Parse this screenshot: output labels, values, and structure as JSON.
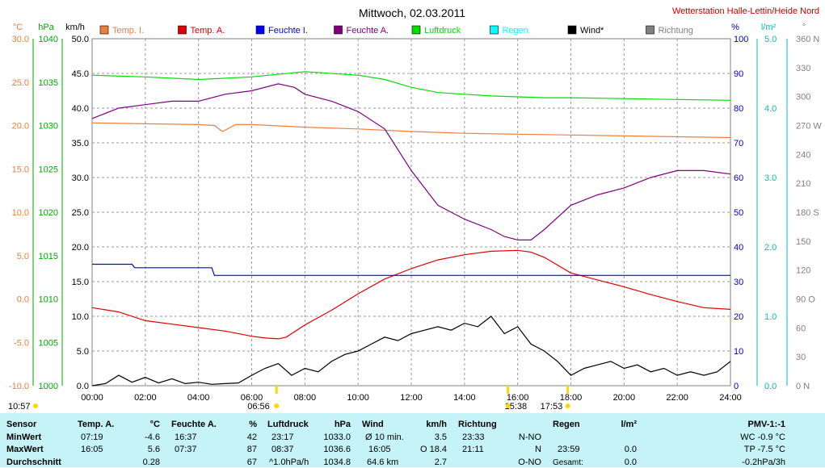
{
  "header": {
    "title": "Mittwoch, 02.03.2011",
    "station": "Wetterstation Halle-Lettin/Heide Nord"
  },
  "axis_units": {
    "temp": "°C",
    "pressure": "hPa",
    "wind": "km/h",
    "humidity": "%",
    "rain": "l/m²",
    "direction": "°"
  },
  "legend": [
    {
      "label": "Temp. I.",
      "color": "#f07d3c"
    },
    {
      "label": "Temp. A.",
      "color": "#e00000"
    },
    {
      "label": "Feuchte I.",
      "color": "#0000ff"
    },
    {
      "label": "Feuchte A.",
      "color": "#800080"
    },
    {
      "label": "Luftdruck",
      "color": "#00dd00"
    },
    {
      "label": "Regen",
      "color": "#00ffff"
    },
    {
      "label": "Wind*",
      "color": "#000000"
    },
    {
      "label": "Richtung",
      "color": "#808080"
    }
  ],
  "chart_data": {
    "type": "line",
    "title": "Mittwoch, 02.03.2011",
    "x_unit": "time of day",
    "xlim": [
      "00:00",
      "24:00"
    ],
    "x_ticks": [
      "00:00",
      "02:00",
      "04:00",
      "06:00",
      "08:00",
      "10:00",
      "12:00",
      "14:00",
      "16:00",
      "18:00",
      "20:00",
      "22:00",
      "24:00"
    ],
    "axes": {
      "temp_c": {
        "ticks": [
          "-10.0",
          "-5.0",
          "0.0",
          "5.0",
          "10.0",
          "15.0",
          "20.0",
          "25.0",
          "30.0"
        ],
        "ylim": [
          -10,
          30
        ],
        "color": "#f07d3c"
      },
      "pressure_hpa": {
        "ticks": [
          "1000",
          "1005",
          "1010",
          "1015",
          "1020",
          "1025",
          "1030",
          "1035",
          "1040"
        ],
        "ylim": [
          1000,
          1040
        ],
        "color": "#00aa00"
      },
      "wind_kmh": {
        "ticks": [
          "0.0",
          "5.0",
          "10.0",
          "15.0",
          "20.0",
          "25.0",
          "30.0",
          "35.0",
          "40.0",
          "45.0",
          "50.0"
        ],
        "ylim": [
          0,
          50
        ],
        "color": "#000000"
      },
      "humidity_pct": {
        "ticks": [
          "0",
          "10",
          "20",
          "30",
          "40",
          "50",
          "60",
          "70",
          "80",
          "90",
          "100"
        ],
        "ylim": [
          0,
          100
        ],
        "color": "#0000c0"
      },
      "rain_lm2": {
        "ticks": [
          "0.0",
          "1.0",
          "2.0",
          "3.0",
          "4.0",
          "5.0"
        ],
        "ylim": [
          0,
          5
        ],
        "color": "#00c0c0"
      },
      "direction_deg": {
        "ticks": [
          "0 N",
          "30",
          "60",
          "90 O",
          "120",
          "150",
          "180 S",
          "210",
          "240",
          "270 W",
          "300",
          "330",
          "360 N"
        ],
        "ylim": [
          0,
          360
        ],
        "color": "#808080"
      }
    },
    "series": [
      {
        "name": "Temp. I.",
        "axis": "temp_c",
        "color": "#f07d3c",
        "x": [
          0,
          2,
          4,
          4.6,
          4.9,
          5.4,
          6,
          8,
          10,
          12,
          14,
          16,
          18,
          20,
          22,
          24
        ],
        "y": [
          20.3,
          20.2,
          20.1,
          20.0,
          19.3,
          20.1,
          20.1,
          19.8,
          19.6,
          19.3,
          19.1,
          19.0,
          18.9,
          18.8,
          18.7,
          18.6
        ]
      },
      {
        "name": "Temp. A.",
        "axis": "temp_c",
        "color": "#e00000",
        "x": [
          0,
          1,
          2,
          3,
          4,
          5,
          6,
          6.5,
          7,
          7.3,
          8,
          9,
          10,
          11,
          12,
          13,
          14,
          15,
          16,
          16.5,
          17,
          18,
          19,
          20,
          21,
          22,
          23,
          24
        ],
        "y": [
          -1.0,
          -1.5,
          -2.5,
          -2.9,
          -3.3,
          -3.7,
          -4.3,
          -4.5,
          -4.6,
          -4.4,
          -3.0,
          -1.3,
          0.6,
          2.3,
          3.5,
          4.5,
          5.1,
          5.5,
          5.6,
          5.4,
          4.8,
          3.0,
          2.2,
          1.4,
          0.5,
          -0.3,
          -1.0,
          -1.2
        ]
      },
      {
        "name": "Feuchte I.",
        "axis": "humidity_pct",
        "color": "#0000ff",
        "x": [
          0,
          1.5,
          1.6,
          4.5,
          4.6,
          24
        ],
        "y": [
          35,
          35,
          34,
          34,
          31.8,
          31.8
        ]
      },
      {
        "name": "Feuchte A.",
        "axis": "humidity_pct",
        "color": "#800080",
        "x": [
          0,
          1,
          2,
          3,
          4,
          5,
          6,
          7,
          7.6,
          8,
          9,
          10,
          11,
          12,
          13,
          14,
          15,
          15.5,
          16,
          16.5,
          17,
          18,
          19,
          20,
          21,
          22,
          23,
          24
        ],
        "y": [
          77,
          80,
          81,
          82,
          82,
          84,
          85,
          87,
          86,
          84,
          82,
          79,
          74,
          62,
          52,
          48,
          45,
          43,
          42,
          42,
          45,
          52,
          55,
          57,
          60,
          62,
          62,
          61
        ]
      },
      {
        "name": "Luftdruck",
        "axis": "pressure_hpa",
        "color": "#00dd00",
        "x": [
          0,
          2,
          4,
          6,
          8,
          10,
          11,
          12,
          13,
          14,
          15,
          16,
          17,
          18,
          20,
          22,
          24
        ],
        "y": [
          1035.8,
          1035.6,
          1035.3,
          1035.6,
          1036.2,
          1035.8,
          1035.3,
          1034.4,
          1033.8,
          1033.6,
          1033.4,
          1033.3,
          1033.2,
          1033.2,
          1033.1,
          1033.0,
          1032.9
        ]
      },
      {
        "name": "Wind*",
        "axis": "wind_kmh",
        "color": "#000000",
        "x": [
          0,
          0.5,
          1,
          1.5,
          2,
          2.5,
          3,
          3.5,
          4,
          4.5,
          5,
          5.5,
          6,
          6.5,
          7,
          7.5,
          8,
          8.5,
          9,
          9.5,
          10,
          10.5,
          11,
          11.5,
          12,
          12.5,
          13,
          13.5,
          14,
          14.5,
          15,
          15.5,
          16,
          16.5,
          17,
          17.5,
          18,
          18.5,
          19,
          19.5,
          20,
          20.5,
          21,
          21.5,
          22,
          22.5,
          23,
          23.5,
          24
        ],
        "y": [
          0,
          0.3,
          1.5,
          0.5,
          1.2,
          0.4,
          1.0,
          0.3,
          0.5,
          0.2,
          0.3,
          0.4,
          1.5,
          2.5,
          3.2,
          1.5,
          2.5,
          2.0,
          3.5,
          4.5,
          5.0,
          6.0,
          7.0,
          6.5,
          7.5,
          8.0,
          8.5,
          8.0,
          9.0,
          8.5,
          10.0,
          7.5,
          8.5,
          6.0,
          5.0,
          3.5,
          1.5,
          2.5,
          3.0,
          3.5,
          2.5,
          3.0,
          2.0,
          2.5,
          1.5,
          2.0,
          1.5,
          2.0,
          3.5
        ]
      }
    ]
  },
  "markers": {
    "left_time": "10:57",
    "sunrise": "06:56",
    "sun_mid": "15:38",
    "sunset": "17:53"
  },
  "table": {
    "headers": {
      "sensor": "Sensor",
      "temp": "Temp. A.",
      "temp_unit": "°C",
      "hum": "Feuchte A.",
      "hum_unit": "%",
      "press": "Luftdruck",
      "press_unit": "hPa",
      "wind": "Wind",
      "wind_unit": "km/h",
      "dir": "Richtung",
      "rain": "Regen",
      "rain_unit": "l/m²",
      "pmv": "PMV-1:-1"
    },
    "rows": [
      {
        "label": "MinWert",
        "temp_t": "07:19",
        "temp_v": "-4.6",
        "hum_t": "16:37",
        "hum_v": "42",
        "press_t": "23:17",
        "press_v": "1033.0",
        "wind_t": "Ø 10 min.",
        "wind_v": "3.5",
        "dir_t": "23:33",
        "dir_v": "N-NO",
        "rain_t": "",
        "rain_v": "",
        "pmv": "WC -0.9 °C"
      },
      {
        "label": "MaxWert",
        "temp_t": "16:05",
        "temp_v": "5.6",
        "hum_t": "07:37",
        "hum_v": "87",
        "press_t": "08:37",
        "press_v": "1036.6",
        "wind_t": "16:05",
        "wind_mid": "O 18.4",
        "dir_t": "21:11",
        "dir_v": "N",
        "rain_t": "23:59",
        "rain_v": "0.0",
        "pmv": "TP -7.5 °C"
      },
      {
        "label": "Durchschnitt",
        "temp_t": "",
        "temp_v": "0.28",
        "hum_t": "",
        "hum_v": "67",
        "press_t": "^1.0hPa/h",
        "press_v": "1034.8",
        "wind_t": "64.6 km",
        "wind_v": "2.7",
        "dir_t": "",
        "dir_v": "O-NO",
        "rain_t": "Gesamt:",
        "rain_v": "0.0",
        "pmv": "-0.2hPa/3h"
      }
    ]
  }
}
